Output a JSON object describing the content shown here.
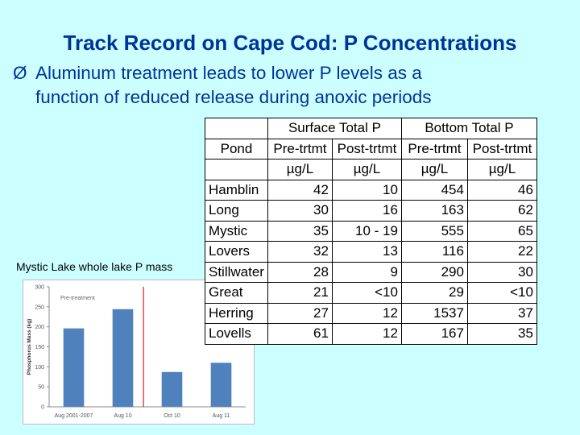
{
  "slide": {
    "title": "Track Record on Cape Cod: P Concentrations",
    "bullet_symbol": "Ø",
    "bullet_line1": "Aluminum treatment leads to lower P levels as a",
    "bullet_line2": "function of reduced release during anoxic periods",
    "caption": "Mystic Lake whole lake P mass"
  },
  "table": {
    "header_groups": [
      "Surface Total P",
      "Bottom Total P"
    ],
    "pond_label": "Pond",
    "sub_headers": [
      "Pre-trtmt",
      "Post-trtmt",
      "Pre-trtmt",
      "Post-trtmt"
    ],
    "units": [
      "µg/L",
      "µg/L",
      "µg/L",
      "µg/L"
    ],
    "rows": [
      [
        "Hamblin",
        "42",
        "10",
        "454",
        "46"
      ],
      [
        "Long",
        "30",
        "16",
        "163",
        "62"
      ],
      [
        "Mystic",
        "35",
        "10 - 19",
        "555",
        "65"
      ],
      [
        "Lovers",
        "32",
        "13",
        "116",
        "22"
      ],
      [
        "Stillwater",
        "28",
        "9",
        "290",
        "30"
      ],
      [
        "Great",
        "21",
        "<10",
        "29",
        "<10"
      ],
      [
        "Herring",
        "27",
        "12",
        "1537",
        "37"
      ],
      [
        "Lovells",
        "61",
        "12",
        "167",
        "35"
      ]
    ]
  },
  "chart_data": {
    "type": "bar",
    "categories": [
      "Aug 2001-2007",
      "Aug 10",
      "Oct 10",
      "Aug 11"
    ],
    "values": [
      196,
      244,
      87,
      110
    ],
    "ylabel": "Phosphorus Mass (kg)",
    "ylim": [
      0,
      300
    ],
    "yticks": [
      "0",
      "50",
      "100",
      "150",
      "200",
      "250",
      "300"
    ],
    "annotation": "Pre-treatment",
    "bar_color": "#4f81bd",
    "marker_color": "#e03030",
    "grid": false
  }
}
